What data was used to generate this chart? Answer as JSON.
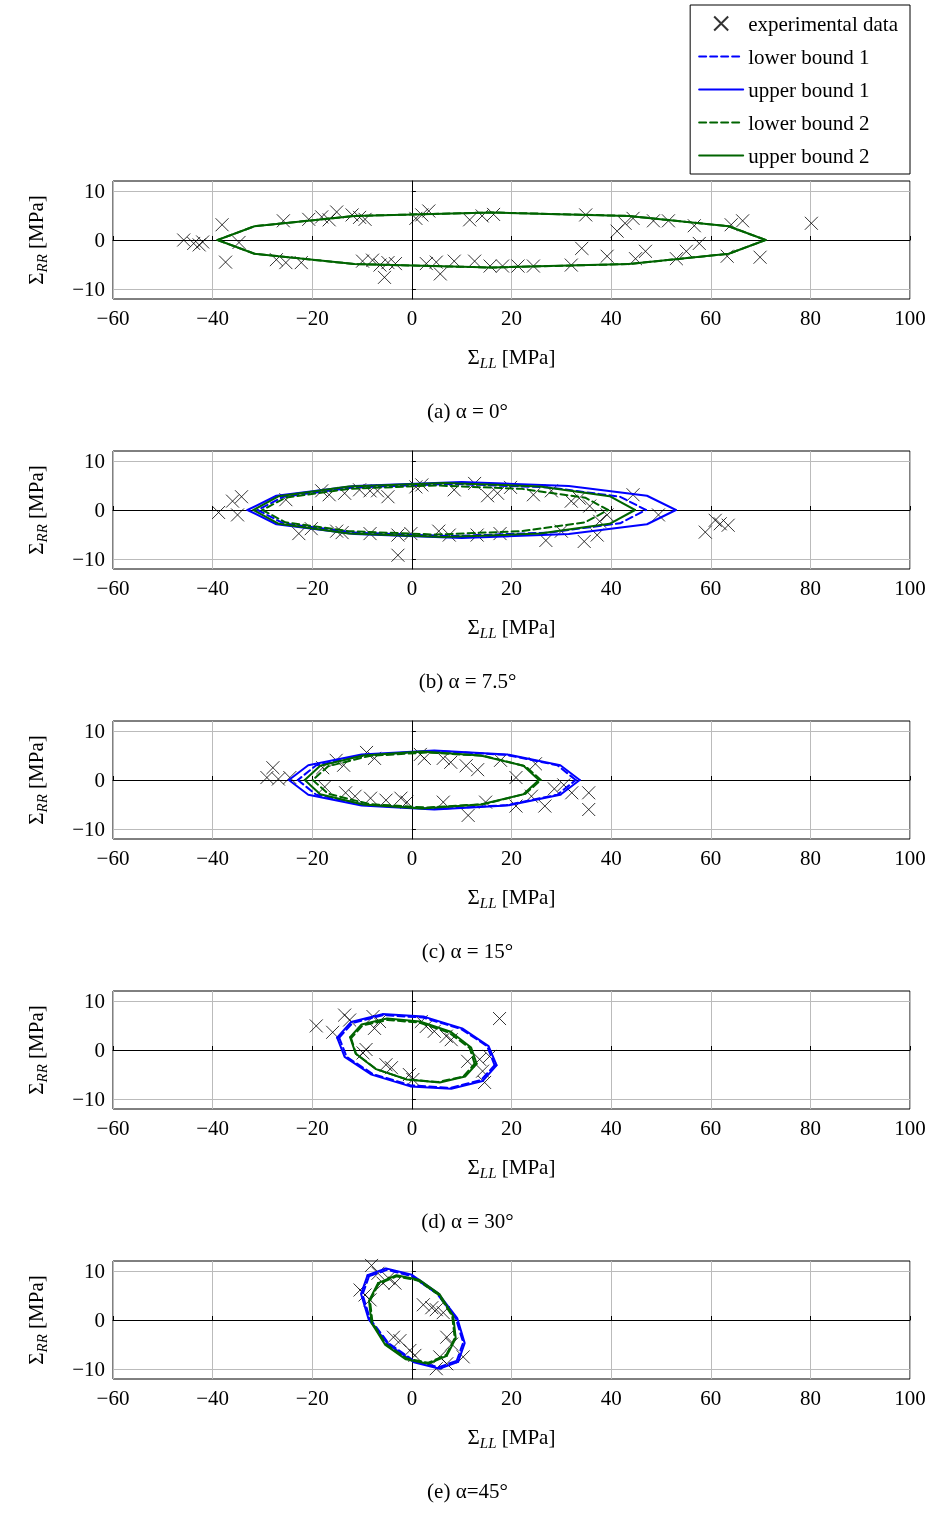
{
  "chart_data": [
    {
      "type": "scatter",
      "title": "(a) α = 0°",
      "xlabel": "Σ$_{LL}$ [MPa]",
      "ylabel": "Σ$_{RR}$ [MPa]",
      "xlim": [
        -60,
        100
      ],
      "xticks": [
        -60,
        -40,
        -20,
        0,
        20,
        40,
        60,
        80,
        100
      ],
      "ylim": [
        -12,
        12
      ],
      "yticks": [
        -10,
        0,
        10
      ],
      "grid": true,
      "legend": "top right",
      "series": [
        {
          "name": "experimental data",
          "type": "scatter",
          "marker": "cross",
          "color": "#000000",
          "x": [
            -45.8,
            -43.8,
            -42.7,
            -42,
            -38.1,
            -37.4,
            -34.7,
            -25.8,
            -27.2,
            -25.3,
            -22.2,
            -20.7,
            -18.1,
            -16.6,
            -15.1,
            -12,
            -10.5,
            -9.4,
            -9.9,
            -7.9,
            -6.4,
            -5.5,
            -4.8,
            -3.3,
            0.8,
            2,
            3.4,
            2.9,
            4.9,
            5.7,
            8.5,
            11.6,
            14.1,
            16.4,
            12.6,
            15.7,
            18.2,
            21.3,
            24.4,
            32,
            34.1,
            34.9,
            39.2,
            41.2,
            42.8,
            44.4,
            44.9,
            46.9,
            48.5,
            51.5,
            53.1,
            55.1,
            56.7,
            57.7,
            63.3,
            64.1,
            66.4,
            69.9,
            80.2
          ],
          "values": [
            0,
            -0.7,
            -1,
            -0.4,
            3.1,
            -4.5,
            -0.5,
            3.9,
            -4,
            -4.6,
            -4.6,
            4.2,
            4.7,
            4.1,
            5.7,
            5.1,
            4.6,
            4.2,
            -4.3,
            -4.1,
            -5.1,
            -7.6,
            -4.6,
            -4.8,
            4.4,
            5.1,
            5.9,
            -4.8,
            -4.5,
            -6.9,
            -4.3,
            4.1,
            4.9,
            5.2,
            -4.3,
            -5.3,
            -5.3,
            -5.3,
            -5.3,
            -5.1,
            -1.7,
            5.1,
            -3.3,
            1.8,
            3.4,
            4.4,
            -3.8,
            -2.3,
            3.9,
            3.9,
            -3.8,
            -2.3,
            2.9,
            -0.7,
            -3.3,
            3.1,
            3.9,
            -3.5,
            3.4
          ]
        },
        {
          "name": "lower bound 1",
          "type": "line",
          "marker": "none",
          "line_style": "dashed",
          "color": "#0000ff"
        },
        {
          "name": "upper bound 1",
          "type": "line",
          "marker": "none",
          "line_style": "solid",
          "color": "#0000ff"
        },
        {
          "name": "lower bound 2",
          "type": "line",
          "marker": "none",
          "line_style": "dashed",
          "color": "#006400",
          "x": [
            71,
            63.6,
            43.5,
            16,
            -11.5,
            -31.6,
            -39
          ],
          "values": [
            0,
            2.8,
            4.9,
            5.6,
            4.9,
            2.8,
            0
          ]
        },
        {
          "type": "line",
          "marker": "none",
          "line_style": "dashed",
          "color": "#006400",
          "x": [
            -39,
            -31.6,
            -11.5,
            16,
            43.5,
            63.6,
            71
          ],
          "values": [
            0,
            -2.8,
            -4.9,
            -5.6,
            -4.9,
            -2.8,
            0
          ]
        },
        {
          "name": "upper bound 2",
          "type": "line",
          "marker": "none",
          "line_style": "solid",
          "color": "#006400",
          "x": [
            71,
            63.6,
            43.5,
            16,
            -11.5,
            -31.6,
            -39
          ],
          "values": [
            0,
            2.8,
            4.9,
            5.6,
            4.9,
            2.8,
            0
          ]
        },
        {
          "type": "line",
          "marker": "none",
          "line_style": "solid",
          "color": "#006400",
          "x": [
            -39,
            -31.6,
            -11.5,
            16,
            43.5,
            63.6,
            71
          ],
          "values": [
            0,
            -2.8,
            -4.9,
            -5.6,
            -4.9,
            -2.8,
            0
          ]
        }
      ]
    },
    {
      "type": "scatter",
      "title": "(b) α = 7.5°",
      "xlabel": "Σ$_{LL}$ [MPa]",
      "ylabel": "Σ$_{RR}$ [MPa]",
      "xlim": [
        -60,
        100
      ],
      "xticks": [
        -60,
        -40,
        -20,
        0,
        20,
        40,
        60,
        80,
        100
      ],
      "ylim": [
        -12,
        12
      ],
      "yticks": [
        -10,
        0,
        10
      ],
      "grid": true,
      "series": [
        {
          "type": "scatter",
          "marker": "cross",
          "color": "#000000",
          "x": [
            -38.8,
            -36,
            -34.2,
            -35,
            -25.3,
            -22.7,
            -20.2,
            -18.1,
            -16.6,
            -15.1,
            -13.5,
            -14,
            -10.5,
            -8.4,
            -6.9,
            -4.8,
            -8.4,
            -2.8,
            -0.2,
            -2.8,
            0.8,
            2,
            5.4,
            7.5,
            8.5,
            12.6,
            13.1,
            15.2,
            17.2,
            17.7,
            19.8,
            24.4,
            26.9,
            28,
            30,
            32,
            33.6,
            34.6,
            35.7,
            37.2,
            37.7,
            39.2,
            44.4,
            49.5,
            58.9,
            60.9,
            61.9,
            63.5
          ],
          "values": [
            -0.5,
            1.8,
            2.7,
            -1,
            2.1,
            -4.8,
            -3.8,
            3.9,
            3.1,
            -4.3,
            3.4,
            -4.6,
            4.1,
            3.9,
            3.9,
            2.7,
            -4.8,
            -5.1,
            -4.8,
            -9.2,
            4.7,
            5.1,
            -4.3,
            -5.1,
            4.1,
            5.4,
            -5.1,
            2.9,
            3.4,
            -4.8,
            4.6,
            3.1,
            -6.2,
            3.9,
            -4.3,
            1.8,
            2.4,
            -6.4,
            0.8,
            -5.1,
            -2.3,
            -1,
            3.1,
            -1,
            -4.5,
            -2.1,
            -2.8,
            -3.1
          ]
        },
        {
          "type": "line",
          "marker": "none",
          "line_style": "dashed",
          "color": "#0000ff",
          "x": [
            47,
            41.8,
            27.5,
            8,
            -11.5,
            -25.8,
            -31
          ],
          "values": [
            0,
            2.7,
            4.6,
            5.3,
            4.6,
            2.7,
            0
          ]
        },
        {
          "type": "line",
          "marker": "none",
          "line_style": "dashed",
          "color": "#0000ff",
          "x": [
            -31,
            -25.8,
            -11.5,
            8,
            27.5,
            41.8,
            47
          ],
          "values": [
            0,
            -2.7,
            -4.6,
            -5.3,
            -4.6,
            -2.7,
            0
          ]
        },
        {
          "type": "line",
          "marker": "none",
          "line_style": "solid",
          "color": "#0000ff",
          "x": [
            53,
            47.2,
            31.5,
            10,
            -11.5,
            -27.2,
            -33
          ],
          "values": [
            0,
            2.9,
            4.9,
            5.7,
            4.9,
            2.9,
            0
          ]
        },
        {
          "type": "line",
          "marker": "none",
          "line_style": "solid",
          "color": "#0000ff",
          "x": [
            -33,
            -27.2,
            -11.5,
            10,
            31.5,
            47.2,
            53
          ],
          "values": [
            0,
            -2.9,
            -4.9,
            -5.7,
            -4.9,
            -2.9,
            0
          ]
        },
        {
          "type": "line",
          "marker": "none",
          "line_style": "dashed",
          "color": "#006400",
          "x": [
            39.4,
            34.8,
            22.1,
            4.7,
            -12.7,
            -25.4,
            -30
          ],
          "values": [
            0,
            2.5,
            4.3,
            5,
            4.3,
            2.5,
            0
          ]
        },
        {
          "type": "line",
          "marker": "none",
          "line_style": "dashed",
          "color": "#006400",
          "x": [
            -30,
            -25.4,
            -12.7,
            4.7,
            22.1,
            34.8,
            39.4
          ],
          "values": [
            0,
            -2.5,
            -4.3,
            -5,
            -4.3,
            -2.5,
            0
          ]
        },
        {
          "type": "line",
          "marker": "none",
          "line_style": "solid",
          "color": "#006400",
          "x": [
            44.8,
            39.7,
            25.7,
            6.5,
            -12.7,
            -26.7,
            -31.8
          ],
          "values": [
            0,
            2.8,
            4.8,
            5.5,
            4.8,
            2.8,
            0
          ]
        },
        {
          "type": "line",
          "marker": "none",
          "line_style": "solid",
          "color": "#006400",
          "x": [
            -31.8,
            -26.7,
            -12.7,
            6.5,
            25.7,
            39.7,
            44.8
          ],
          "values": [
            0,
            -2.8,
            -4.8,
            -5.5,
            -4.8,
            -2.8,
            0
          ]
        }
      ]
    },
    {
      "type": "scatter",
      "title": "(c) α = 15°",
      "xlabel": "Σ$_{LL}$ [MPa]",
      "ylabel": "Σ$_{RR}$ [MPa]",
      "xlim": [
        -60,
        100
      ],
      "xticks": [
        -60,
        -40,
        -20,
        0,
        20,
        40,
        60,
        80,
        100
      ],
      "ylim": [
        -12,
        12
      ],
      "yticks": [
        -10,
        0,
        10
      ],
      "grid": true,
      "series": [
        {
          "type": "scatter",
          "marker": "cross",
          "color": "#000000",
          "x": [
            -27.9,
            -29.1,
            -26.8,
            -24.5,
            -17.9,
            -15.2,
            -13.7,
            -9.1,
            -7.5,
            -17.5,
            -13.3,
            -11.4,
            -8.3,
            -5.2,
            -2.2,
            -1,
            1.7,
            2.5,
            6.3,
            7.8,
            10.9,
            13.2,
            6.3,
            11.3,
            14.8,
            17.8,
            20.9,
            20.9,
            24,
            24.8,
            26.7,
            28.6,
            30.5,
            32.1,
            35.5,
            35.5
          ],
          "values": [
            2.5,
            0.5,
            0.2,
            0.5,
            2.5,
            4,
            3,
            5.6,
            4.4,
            -1.4,
            -2.6,
            -3.3,
            -3.7,
            -4.1,
            -3.7,
            -4.5,
            5.2,
            4.4,
            4.4,
            3.6,
            2.9,
            2.1,
            -4.5,
            -7.2,
            -4.5,
            4,
            0.5,
            -5.3,
            -3.3,
            3.3,
            -5.3,
            -1.8,
            -1,
            -2.6,
            -2.6,
            -6
          ]
        },
        {
          "type": "line",
          "marker": "none",
          "line_style": "dashed",
          "color": "#0000ff",
          "x": [
            32.9,
            29.2,
            19,
            5,
            -9,
            -19.2,
            -22.9
          ],
          "values": [
            0,
            3,
            5.1,
            5.9,
            5.1,
            3,
            0
          ]
        },
        {
          "type": "line",
          "marker": "none",
          "line_style": "dashed",
          "color": "#0000ff",
          "x": [
            -22.9,
            -19.2,
            -9,
            5,
            19,
            29.2,
            32.9
          ],
          "values": [
            0,
            -3,
            -5.1,
            -5.9,
            -5.1,
            -3,
            0
          ]
        },
        {
          "type": "line",
          "marker": "none",
          "line_style": "solid",
          "color": "#0000ff",
          "x": [
            33.7,
            29.8,
            19.1,
            4.5,
            -10.1,
            -20.8,
            -24.7
          ],
          "values": [
            0,
            3,
            5.2,
            6,
            5.2,
            3,
            0
          ]
        },
        {
          "type": "line",
          "marker": "none",
          "line_style": "solid",
          "color": "#0000ff",
          "x": [
            -24.7,
            -20.8,
            -10.1,
            4.5,
            19.1,
            29.8,
            33.7
          ],
          "values": [
            0,
            -3,
            -5.2,
            -6,
            -5.2,
            -3,
            0
          ]
        },
        {
          "type": "line",
          "marker": "none",
          "line_style": "dashed",
          "color": "#006400",
          "x": [
            25.9,
            22.8,
            14.5,
            3,
            -8.5,
            -16.8,
            -19.9
          ],
          "values": [
            0,
            2.8,
            4.9,
            5.6,
            4.9,
            2.8,
            0
          ]
        },
        {
          "type": "line",
          "marker": "none",
          "line_style": "dashed",
          "color": "#006400",
          "x": [
            -19.9,
            -16.8,
            -8.5,
            3,
            14.5,
            22.8,
            25.9
          ],
          "values": [
            0,
            -2.8,
            -4.9,
            -5.6,
            -4.9,
            -2.8,
            0
          ]
        },
        {
          "type": "line",
          "marker": "none",
          "line_style": "solid",
          "color": "#006400",
          "x": [
            25.5,
            22.4,
            13.8,
            2,
            -9.8,
            -18.4,
            -21.5
          ],
          "values": [
            0,
            2.9,
            5,
            5.8,
            5,
            2.9,
            0
          ]
        },
        {
          "type": "line",
          "marker": "none",
          "line_style": "solid",
          "color": "#006400",
          "x": [
            -21.5,
            -18.4,
            -9.8,
            2,
            13.8,
            22.4,
            25.5
          ],
          "values": [
            0,
            -2.9,
            -5,
            -5.8,
            -5,
            -2.9,
            0
          ]
        }
      ]
    },
    {
      "type": "scatter",
      "title": "(d) α = 30°",
      "xlabel": "Σ$_{LL}$ [MPa]",
      "ylabel": "Σ$_{RR}$ [MPa]",
      "xlim": [
        -60,
        100
      ],
      "xticks": [
        -60,
        -40,
        -20,
        0,
        20,
        40,
        60,
        80,
        100
      ],
      "ylim": [
        -12,
        12
      ],
      "yticks": [
        -10,
        0,
        10
      ],
      "grid": true,
      "series": [
        {
          "type": "scatter",
          "marker": "cross",
          "color": "#000000",
          "x": [
            -19.2,
            -15.9,
            -13.5,
            -12.5,
            -7.8,
            -6.5,
            -7.5,
            -9.8,
            -9.2,
            -5.2,
            -4.1,
            -0.5,
            0.2,
            1.9,
            2.9,
            4.5,
            6.9,
            7.9,
            11.2,
            13.6,
            14.2,
            14.6,
            15.6,
            17.6
          ],
          "values": [
            4.9,
            3.6,
            7.1,
            6.1,
            6.8,
            5.8,
            4.4,
            -0.6,
            0.1,
            -3,
            -3.6,
            -5,
            -6,
            5.8,
            4.8,
            3.8,
            2.8,
            2.1,
            -2.3,
            -1.9,
            -4.3,
            -6.6,
            -1.3,
            6.4
          ]
        },
        {
          "type": "line",
          "marker": "none",
          "line_style": "dashed",
          "color": "#0000ff",
          "x": [
            16.6,
            15.1,
            9.8,
            2.2,
            -5.7,
            -11.9,
            -14.6
          ],
          "values": [
            -3.1,
            0.8,
            4.3,
            6.6,
            7.1,
            5.5,
            2.5
          ]
        },
        {
          "type": "line",
          "marker": "none",
          "line_style": "dashed",
          "color": "#0000ff",
          "x": [
            -14.6,
            -13.1,
            -7.8,
            -0.2,
            7.7,
            13.9,
            16.6
          ],
          "values": [
            2.5,
            -1.4,
            -4.9,
            -7.2,
            -7.7,
            -6.1,
            -3.1
          ]
        },
        {
          "type": "line",
          "marker": "none",
          "line_style": "solid",
          "color": "#0000ff",
          "x": [
            17,
            15.4,
            10.1,
            2.3,
            -5.9,
            -12.2,
            -15
          ],
          "values": [
            -3.1,
            0.8,
            4.4,
            6.8,
            7.3,
            5.7,
            2.5
          ]
        },
        {
          "type": "line",
          "marker": "none",
          "line_style": "solid",
          "color": "#0000ff",
          "x": [
            -15,
            -13.5,
            -8.1,
            -0.3,
            7.9,
            14.2,
            17
          ],
          "values": [
            2.5,
            -1.4,
            -5,
            -7.4,
            -7.9,
            -6.3,
            -3.1
          ]
        },
        {
          "type": "line",
          "marker": "none",
          "line_style": "dashed",
          "color": "#006400",
          "x": [
            12.6,
            11.6,
            7.5,
            1.4,
            -4.9,
            -9.9,
            -12.2
          ],
          "values": [
            -2.8,
            0.4,
            3.5,
            5.6,
            6.1,
            5,
            2.4
          ]
        },
        {
          "type": "line",
          "marker": "none",
          "line_style": "dashed",
          "color": "#006400",
          "x": [
            -12.2,
            -11.2,
            -7.1,
            -1,
            5.3,
            10.3,
            12.6
          ],
          "values": [
            2.4,
            -0.8,
            -3.9,
            -6,
            -6.5,
            -5.4,
            -2.8
          ]
        },
        {
          "type": "line",
          "marker": "none",
          "line_style": "solid",
          "color": "#006400",
          "x": [
            13,
            11.9,
            7.8,
            1.6,
            -5,
            -10.1,
            -12.4
          ],
          "values": [
            -2.8,
            0.5,
            3.7,
            5.8,
            6.4,
            5.2,
            2.6
          ]
        },
        {
          "type": "line",
          "marker": "none",
          "line_style": "solid",
          "color": "#006400",
          "x": [
            -12.4,
            -11.3,
            -7.2,
            -1,
            5.6,
            10.7,
            13
          ],
          "values": [
            2.6,
            -0.7,
            -3.9,
            -6,
            -6.6,
            -5.4,
            -2.8
          ]
        }
      ]
    },
    {
      "type": "scatter",
      "title": "(e) α=45°",
      "xlabel": "Σ$_{LL}$ [MPa]",
      "ylabel": "Σ$_{RR}$ [MPa]",
      "xlim": [
        -60,
        100
      ],
      "xticks": [
        -60,
        -40,
        -20,
        0,
        20,
        40,
        60,
        80,
        100
      ],
      "ylim": [
        -12,
        12
      ],
      "yticks": [
        -10,
        0,
        10
      ],
      "grid": true,
      "series": [
        {
          "type": "scatter",
          "marker": "cross",
          "color": "#000000",
          "x": [
            -8.1,
            -6.8,
            -10.4,
            -9.4,
            -8.4,
            -4.7,
            -3.4,
            -5.8,
            2.3,
            4,
            4.9,
            6.3,
            -3.7,
            -2.4,
            -0.4,
            0.6,
            7,
            8,
            5.6,
            4.9,
            7,
            10.3
          ],
          "values": [
            11.1,
            9.5,
            6.1,
            5.1,
            4.1,
            8.5,
            7.5,
            7.5,
            3.1,
            2.5,
            2.1,
            1.5,
            -3.5,
            -4.2,
            -6.2,
            -7.2,
            -3.5,
            -4.9,
            -7.5,
            -9.9,
            -8.9,
            -7.5
          ]
        },
        {
          "type": "line",
          "marker": "none",
          "line_style": "dashed",
          "color": "#0000ff",
          "x": [
            9,
            10.3,
            8.8,
            5.1,
            0,
            -5,
            -8.6
          ],
          "values": [
            -8.3,
            -4.6,
            0.4,
            5.3,
            8.9,
            10.2,
            8.9
          ]
        },
        {
          "type": "line",
          "marker": "none",
          "line_style": "dashed",
          "color": "#0000ff",
          "x": [
            -8.6,
            -9.9,
            -8.4,
            -4.7,
            0.4,
            5.4,
            9
          ],
          "values": [
            8.9,
            5.2,
            0.2,
            -4.7,
            -8.3,
            -9.6,
            -8.3
          ]
        },
        {
          "type": "line",
          "marker": "none",
          "line_style": "solid",
          "color": "#0000ff",
          "x": [
            9.3,
            10.6,
            9.1,
            5.2,
            0,
            -5.2,
            -8.9
          ],
          "values": [
            -8.5,
            -4.7,
            0.4,
            5.5,
            9.2,
            10.5,
            9.1
          ]
        },
        {
          "type": "line",
          "marker": "none",
          "line_style": "solid",
          "color": "#0000ff",
          "x": [
            -8.9,
            -10.2,
            -8.7,
            -4.8,
            0.4,
            5.6,
            9.3
          ],
          "values": [
            9.1,
            5.3,
            0.2,
            -4.9,
            -8.6,
            -9.9,
            -8.5
          ]
        },
        {
          "type": "line",
          "marker": "none",
          "line_style": "dashed",
          "color": "#006400",
          "x": [
            6.9,
            8.6,
            8.1,
            5.4,
            1.3,
            -3.1,
            -6.7
          ],
          "values": [
            -7.1,
            -3.7,
            0.8,
            5.1,
            8,
            8.9,
            7.3
          ]
        },
        {
          "type": "line",
          "marker": "none",
          "line_style": "dashed",
          "color": "#006400",
          "x": [
            -6.7,
            -8.4,
            -7.9,
            -5.2,
            -1.1,
            3.3,
            6.9
          ],
          "values": [
            7.3,
            3.9,
            -0.6,
            -4.9,
            -7.8,
            -8.7,
            -7.1
          ]
        },
        {
          "type": "line",
          "marker": "none",
          "line_style": "solid",
          "color": "#006400",
          "x": [
            7,
            8.8,
            8.3,
            5.6,
            1.4,
            -3.1,
            -6.8
          ],
          "values": [
            -7.3,
            -3.7,
            0.8,
            5.2,
            8.2,
            9.1,
            7.5
          ]
        },
        {
          "type": "line",
          "marker": "none",
          "line_style": "solid",
          "color": "#006400",
          "x": [
            -6.8,
            -8.6,
            -8.1,
            -5.4,
            -1.2,
            3.3,
            7
          ],
          "values": [
            7.5,
            3.9,
            -0.6,
            -5,
            -8,
            -8.9,
            -7.3
          ]
        }
      ]
    }
  ]
}
